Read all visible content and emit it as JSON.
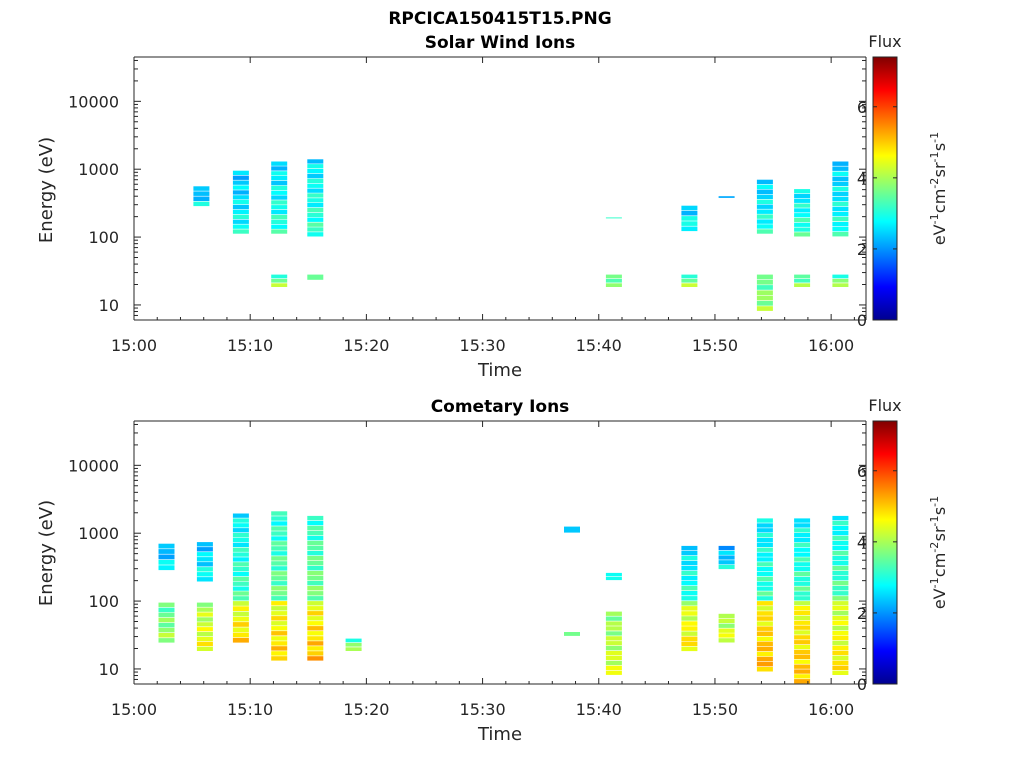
{
  "figure": {
    "title": "RPCICA150415T15.PNG",
    "colorbar": {
      "title": "Flux",
      "label_parts": [
        "eV",
        "-1",
        "cm",
        "-2",
        "sr",
        "-1",
        "s",
        "-1"
      ],
      "range": [
        0,
        7.4
      ],
      "ticks": [
        "0",
        "2",
        "4",
        "6"
      ],
      "colormap": "jet"
    },
    "x_ticks": [
      "15:00",
      "15:10",
      "15:20",
      "15:30",
      "15:40",
      "15:50",
      "16:00"
    ],
    "y_ticks": [
      "10",
      "100",
      "1000",
      "10000"
    ]
  },
  "chart_data": [
    {
      "type": "heatmap",
      "title": "Solar Wind Ions",
      "xlabel": "Time",
      "ylabel": "Energy (eV)",
      "x_unit": "minutes after 15:00",
      "xlim": [
        0,
        63
      ],
      "ylim": [
        6,
        45000
      ],
      "yscale": "log",
      "grid": false,
      "cells": [
        {
          "t": 5.8,
          "e": [
            280,
            560
          ],
          "flux": 2.4
        },
        {
          "t": 9.2,
          "e": [
            110,
            950
          ],
          "flux": 2.6
        },
        {
          "t": 12.5,
          "e": [
            110,
            1300
          ],
          "flux": 2.8
        },
        {
          "t": 12.5,
          "e": [
            18,
            28
          ],
          "flux": 3.6
        },
        {
          "t": 15.6,
          "e": [
            100,
            1400
          ],
          "flux": 2.9
        },
        {
          "t": 15.6,
          "e": [
            23,
            28
          ],
          "flux": 3.6
        },
        {
          "t": 41.3,
          "e": [
            185,
            195
          ],
          "flux": 2.9
        },
        {
          "t": 41.3,
          "e": [
            18,
            28
          ],
          "flux": 3.6
        },
        {
          "t": 47.8,
          "e": [
            120,
            290
          ],
          "flux": 2.7
        },
        {
          "t": 47.8,
          "e": [
            18,
            28
          ],
          "flux": 3.6
        },
        {
          "t": 51.0,
          "e": [
            370,
            400
          ],
          "flux": 2.5
        },
        {
          "t": 54.3,
          "e": [
            110,
            700
          ],
          "flux": 2.7
        },
        {
          "t": 54.3,
          "e": [
            8,
            28
          ],
          "flux": 3.7
        },
        {
          "t": 57.5,
          "e": [
            100,
            510
          ],
          "flux": 2.9
        },
        {
          "t": 57.5,
          "e": [
            18,
            28
          ],
          "flux": 3.6
        },
        {
          "t": 60.8,
          "e": [
            100,
            1300
          ],
          "flux": 2.7
        },
        {
          "t": 60.8,
          "e": [
            18,
            28
          ],
          "flux": 3.6
        }
      ]
    },
    {
      "type": "heatmap",
      "title": "Cometary Ions",
      "xlabel": "Time",
      "ylabel": "Energy (eV)",
      "x_unit": "minutes after 15:00",
      "xlim": [
        0,
        63
      ],
      "ylim": [
        6,
        45000
      ],
      "yscale": "log",
      "grid": false,
      "cells": [
        {
          "t": 2.8,
          "e": [
            280,
            700
          ],
          "flux": 2.4
        },
        {
          "t": 2.8,
          "e": [
            24,
            95
          ],
          "flux": 3.7
        },
        {
          "t": 6.1,
          "e": [
            190,
            740
          ],
          "flux": 2.6
        },
        {
          "t": 6.1,
          "e": [
            18,
            95
          ],
          "flux": 4.3
        },
        {
          "t": 9.2,
          "e": [
            100,
            1950
          ],
          "flux": 3.0
        },
        {
          "t": 9.2,
          "e": [
            24,
            100
          ],
          "flux": 4.6
        },
        {
          "t": 12.5,
          "e": [
            100,
            2100
          ],
          "flux": 3.3
        },
        {
          "t": 12.5,
          "e": [
            13,
            100
          ],
          "flux": 4.7
        },
        {
          "t": 15.6,
          "e": [
            100,
            1800
          ],
          "flux": 3.4
        },
        {
          "t": 15.6,
          "e": [
            13,
            100
          ],
          "flux": 4.8
        },
        {
          "t": 18.9,
          "e": [
            18,
            28
          ],
          "flux": 3.6
        },
        {
          "t": 37.7,
          "e": [
            1000,
            1250
          ],
          "flux": 2.5
        },
        {
          "t": 37.7,
          "e": [
            30,
            35
          ],
          "flux": 3.4
        },
        {
          "t": 41.3,
          "e": [
            200,
            260
          ],
          "flux": 2.8
        },
        {
          "t": 41.3,
          "e": [
            8,
            70
          ],
          "flux": 4.1
        },
        {
          "t": 47.8,
          "e": [
            100,
            650
          ],
          "flux": 2.8
        },
        {
          "t": 47.8,
          "e": [
            18,
            100
          ],
          "flux": 4.5
        },
        {
          "t": 51.0,
          "e": [
            290,
            650
          ],
          "flux": 2.4
        },
        {
          "t": 51.0,
          "e": [
            24,
            65
          ],
          "flux": 4.2
        },
        {
          "t": 54.3,
          "e": [
            100,
            1650
          ],
          "flux": 2.9
        },
        {
          "t": 54.3,
          "e": [
            9,
            100
          ],
          "flux": 4.9
        },
        {
          "t": 57.5,
          "e": [
            100,
            1650
          ],
          "flux": 3.0
        },
        {
          "t": 57.5,
          "e": [
            6,
            100
          ],
          "flux": 4.8
        },
        {
          "t": 60.8,
          "e": [
            100,
            1800
          ],
          "flux": 3.1
        },
        {
          "t": 60.8,
          "e": [
            8,
            100
          ],
          "flux": 4.5
        }
      ]
    }
  ]
}
